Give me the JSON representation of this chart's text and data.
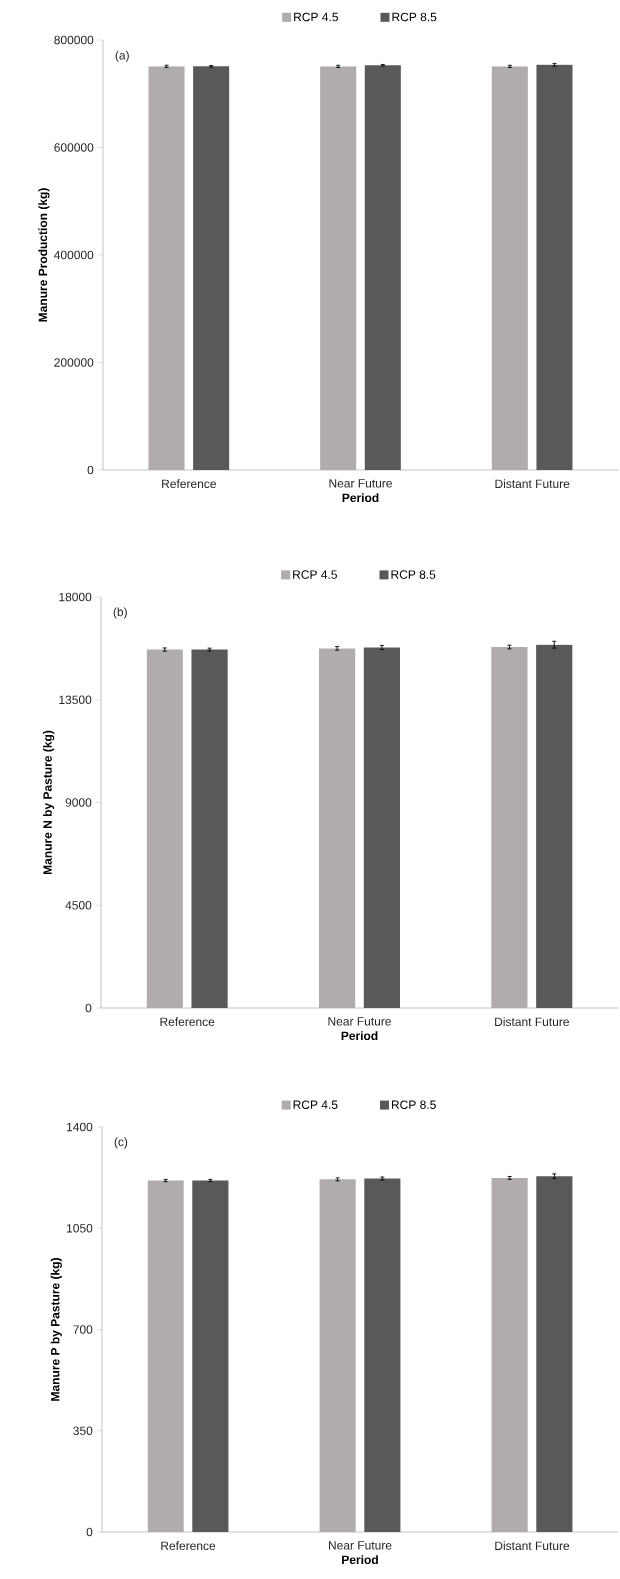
{
  "chart_data": [
    {
      "type": "bar",
      "categories": [
        "Reference",
        "Near Future",
        "Distant Future"
      ],
      "xlabel": "Period",
      "ylabel": "Manure Production (kg)",
      "ylim": [
        0,
        800000
      ],
      "yticks": [
        0,
        200000,
        400000,
        600000,
        800000
      ],
      "legend": "top",
      "annotations": [
        "(a)"
      ],
      "series": [
        {
          "name": "RCP 4.5",
          "color": "#afacab",
          "values": [
            751000,
            751000,
            751000
          ],
          "errors": [
            2000,
            2000,
            2000
          ]
        },
        {
          "name": "RCP 8.5",
          "color": "#595959",
          "values": [
            751000,
            753000,
            754000
          ],
          "errors": [
            1500,
            1500,
            2500
          ]
        }
      ]
    },
    {
      "type": "bar",
      "categories": [
        "Reference",
        "Near Future",
        "Distant Future"
      ],
      "xlabel": "Period",
      "ylabel": "Manure N by Pasture (kg)",
      "ylim": [
        0,
        18000
      ],
      "yticks": [
        0,
        4500,
        9000,
        13500,
        18000
      ],
      "legend": "top",
      "annotations": [
        "(b)"
      ],
      "series": [
        {
          "name": "RCP 4.5",
          "color": "#afacab",
          "values": [
            15700,
            15750,
            15810
          ],
          "errors": [
            70,
            80,
            80
          ]
        },
        {
          "name": "RCP 8.5",
          "color": "#595959",
          "values": [
            15700,
            15790,
            15910
          ],
          "errors": [
            60,
            90,
            150
          ]
        }
      ]
    },
    {
      "type": "bar",
      "categories": [
        "Reference",
        "Near Future",
        "Distant Future"
      ],
      "xlabel": "Period",
      "ylabel": "Manure P by Pasture (kg)",
      "ylim": [
        0,
        1400
      ],
      "yticks": [
        0,
        350,
        700,
        1050,
        1400
      ],
      "legend": "top",
      "annotations": [
        "(c)"
      ],
      "series": [
        {
          "name": "RCP 4.5",
          "color": "#afacab",
          "values": [
            1215,
            1219,
            1224
          ],
          "errors": [
            4,
            5,
            5
          ]
        },
        {
          "name": "RCP 8.5",
          "color": "#595959",
          "values": [
            1215,
            1222,
            1230
          ],
          "errors": [
            4,
            5,
            8
          ]
        }
      ]
    }
  ]
}
